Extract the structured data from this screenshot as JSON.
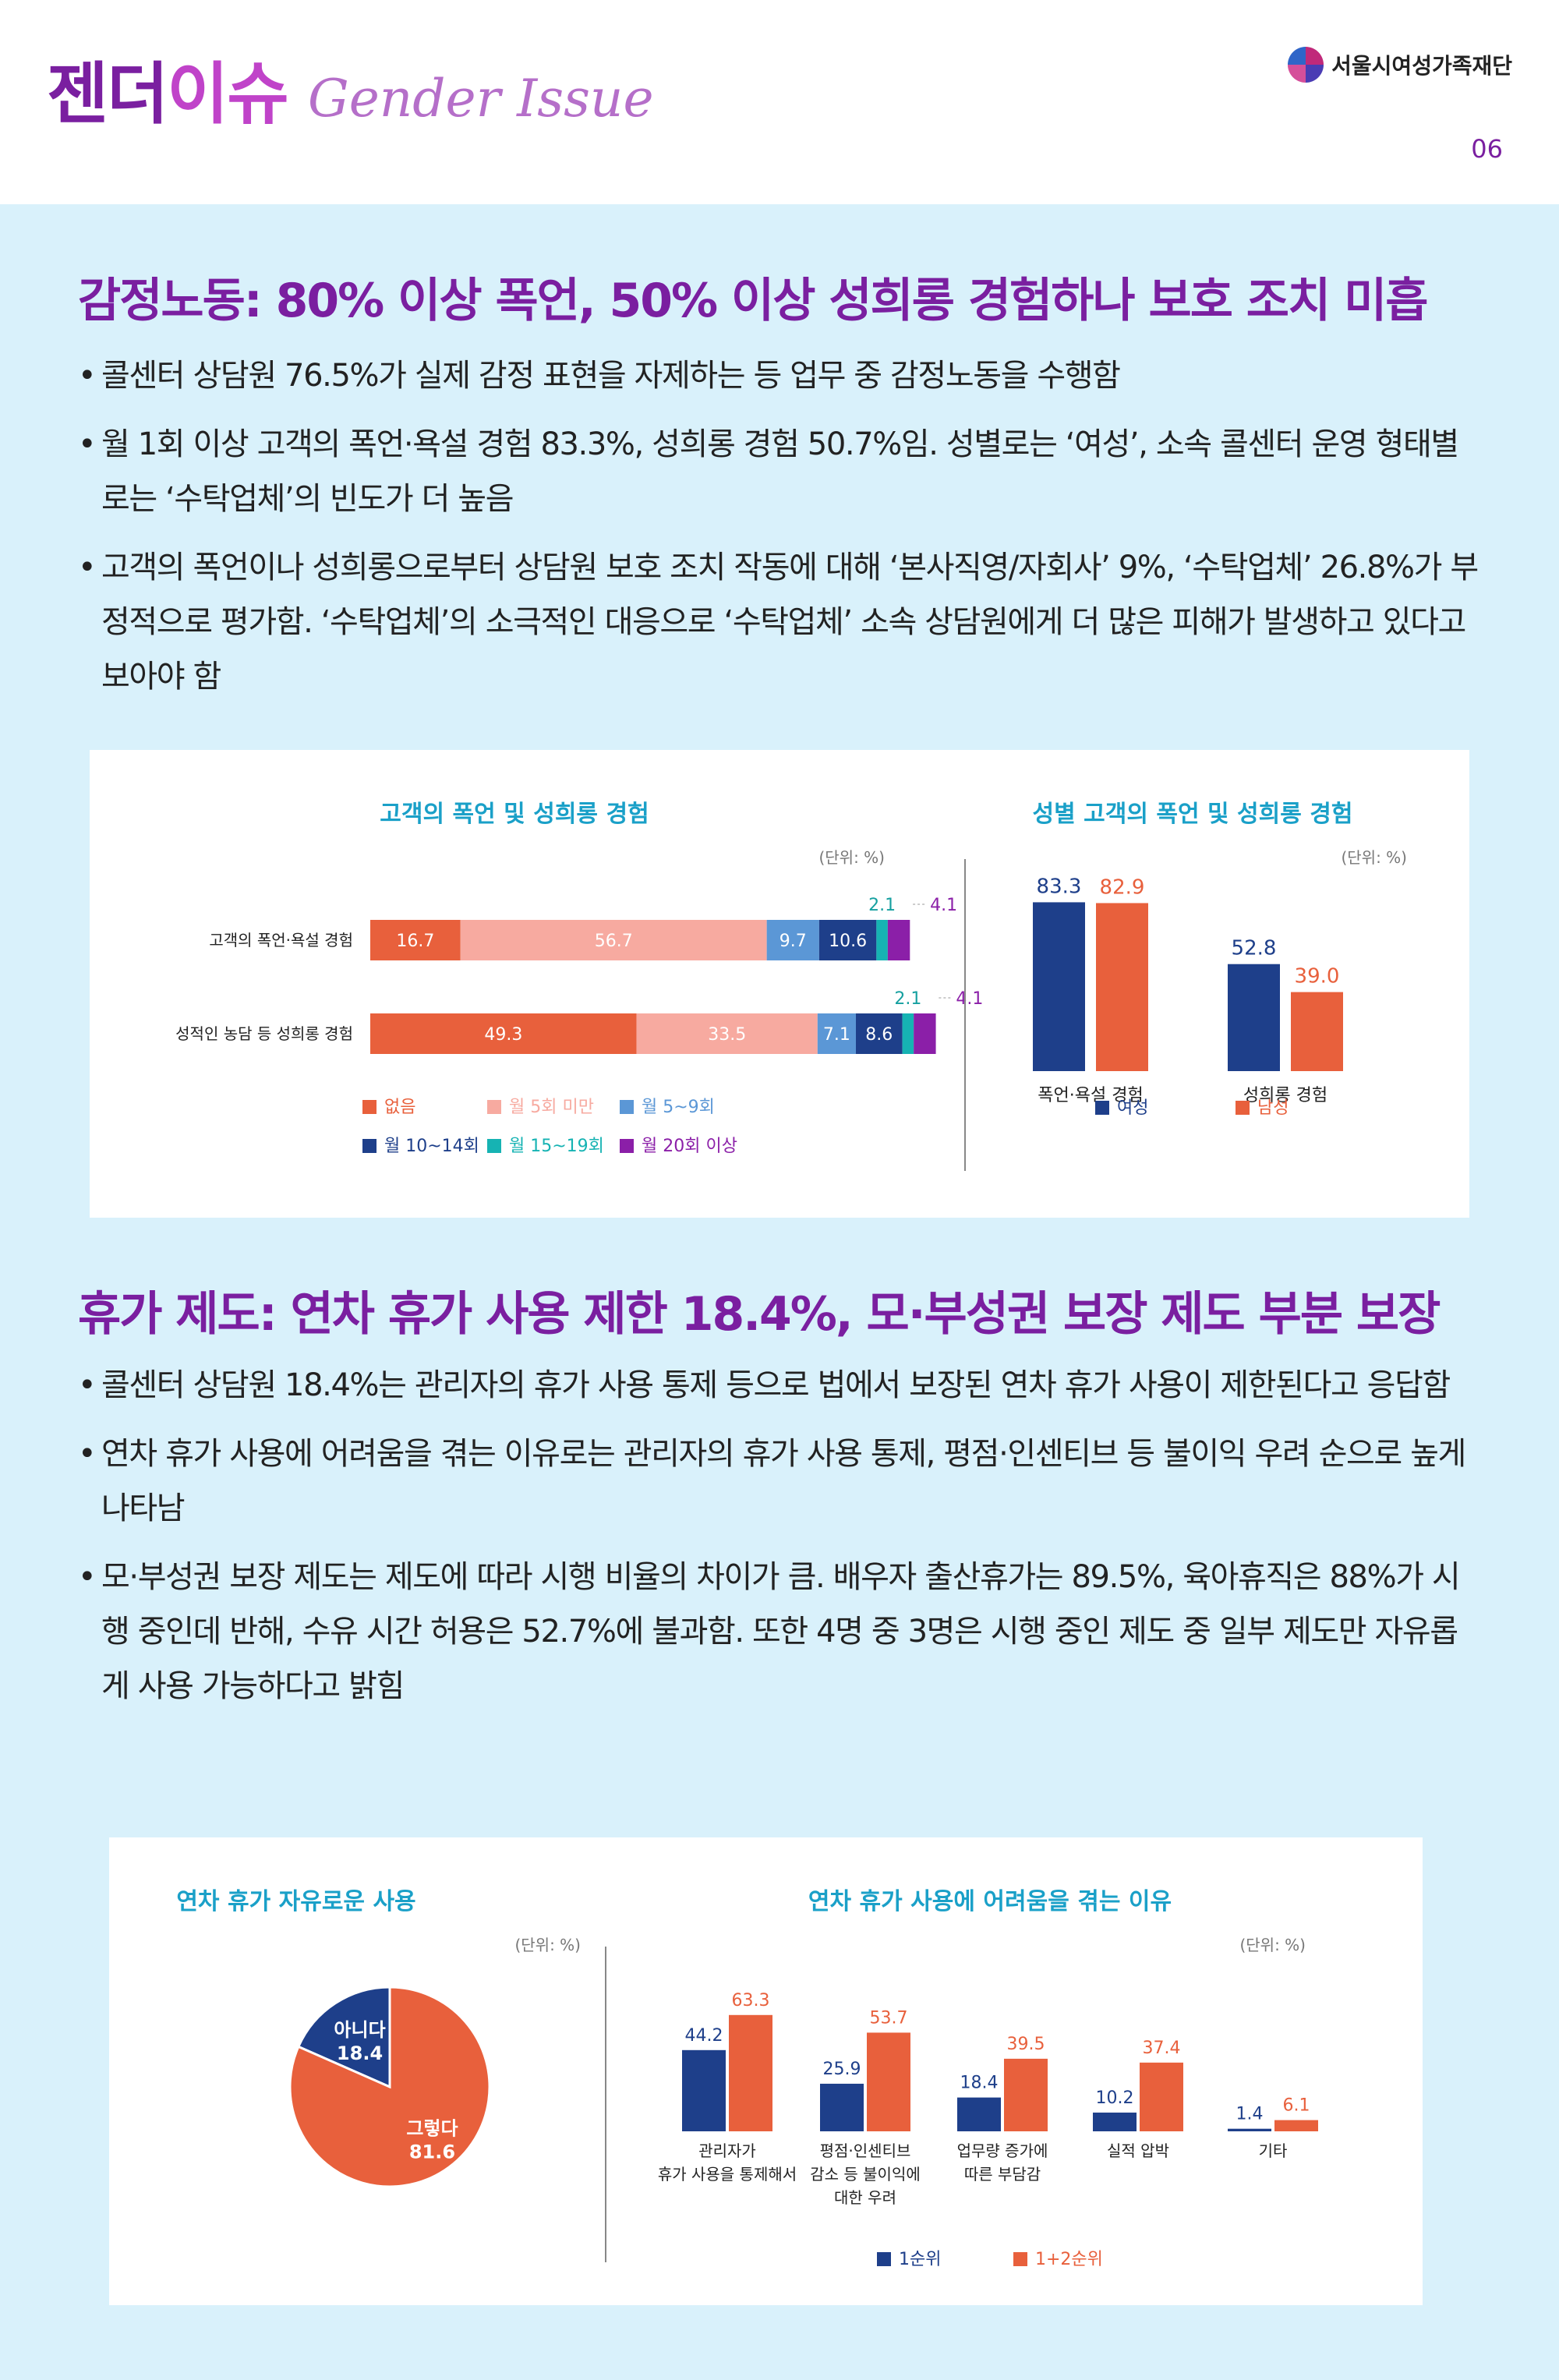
{
  "header": {
    "title_part1": "젠더",
    "title_part2": "이슈",
    "title_en": "Gender Issue",
    "org_name": "서울시여성가족재단",
    "page_number": "06"
  },
  "section1": {
    "title": "감정노동: 80% 이상 폭언, 50% 이상 성희롱 경험하나 보호 조치 미흡",
    "bullets": [
      "콜센터 상담원 76.5%가 실제 감정 표현을 자제하는 등 업무 중 감정노동을 수행함",
      "월 1회 이상 고객의 폭언·욕설 경험 83.3%, 성희롱 경험 50.7%임. 성별로는 ‘여성’, 소속 콜센터 운영 형태별로는 ‘수탁업체’의 빈도가 더 높음",
      "고객의 폭언이나 성희롱으로부터 상담원 보호 조치 작동에 대해 ‘본사직영/자회사’ 9%, ‘수탁업체’ 26.8%가 부정적으로 평가함. ‘수탁업체’의 소극적인 대응으로 ‘수탁업체’ 소속 상담원에게 더 많은 피해가 발생하고 있다고 보아야 함"
    ]
  },
  "section2": {
    "title": "휴가 제도: 연차 휴가 사용 제한 18.4%, 모·부성권 보장 제도 부분 보장",
    "bullets": [
      "콜센터 상담원 18.4%는 관리자의 휴가 사용 통제 등으로 법에서 보장된 연차 휴가 사용이 제한된다고 응답함",
      "연차 휴가 사용에 어려움을 겪는 이유로는 관리자의 휴가 사용 통제, 평점·인센티브 등 불이익 우려 순으로 높게 나타남",
      "모·부성권 보장 제도는 제도에 따라 시행 비율의 차이가 큼. 배우자 출산휴가는 89.5%, 육아휴직은 88%가 시행 중인데 반해, 수유 시간 허용은 52.7%에 불과함. 또한 4명 중 3명은 시행 중인 제도 중 일부 제도만 자유롭게 사용 가능하다고 밝힘"
    ]
  },
  "chart_data": [
    {
      "type": "bar",
      "orientation": "horizontal-stacked",
      "title": "고객의 폭언 및 성희롱 경험",
      "unit": "(단위: %)",
      "categories": [
        "고객의 폭언·욕설 경험",
        "성적인 농담 등 성희롱 경험"
      ],
      "series": [
        {
          "name": "없음",
          "values": [
            16.7,
            49.3
          ],
          "color": "#e8603c"
        },
        {
          "name": "월 5회 미만",
          "values": [
            56.7,
            33.5
          ],
          "color": "#f7aaa0"
        },
        {
          "name": "월 5~9회",
          "values": [
            9.7,
            7.1
          ],
          "color": "#5b97d6"
        },
        {
          "name": "월 10~14회",
          "values": [
            10.6,
            8.6
          ],
          "color": "#1e3f8a"
        },
        {
          "name": "월 15~19회",
          "values": [
            2.1,
            2.1
          ],
          "color": "#16b3b3"
        },
        {
          "name": "월 20회 이상",
          "values": [
            4.1,
            4.1
          ],
          "color": "#8b1fa8"
        }
      ],
      "legend": "bottom"
    },
    {
      "type": "bar",
      "title": "성별 고객의 폭언 및 성희롱 경험",
      "unit": "(단위: %)",
      "categories": [
        "폭언·욕설 경험",
        "성희롱 경험"
      ],
      "series": [
        {
          "name": "여성",
          "values": [
            83.3,
            52.8
          ],
          "color": "#1e3f8a"
        },
        {
          "name": "남성",
          "values": [
            82.9,
            39.0
          ],
          "color": "#e8603c"
        }
      ],
      "value_labels": [
        [
          "83.3",
          "52.8"
        ],
        [
          "82.9",
          "39.0"
        ]
      ],
      "ylim": [
        0,
        100
      ],
      "legend": "bottom"
    },
    {
      "type": "pie",
      "title": "연차 휴가 자유로운 사용",
      "unit": "(단위: %)",
      "slices": [
        {
          "label": "아니다",
          "value": 18.4,
          "color": "#1e3f8a"
        },
        {
          "label": "그렇다",
          "value": 81.6,
          "color": "#e8603c"
        }
      ]
    },
    {
      "type": "bar",
      "title": "연차 휴가 사용에 어려움을 겪는 이유",
      "unit": "(단위: %)",
      "categories": [
        [
          "관리자가",
          "휴가 사용을 통제해서"
        ],
        [
          "평점·인센티브",
          "감소 등 불이익에",
          "대한 우려"
        ],
        [
          "업무량 증가에",
          "따른 부담감"
        ],
        [
          "실적 압박"
        ],
        [
          "기타"
        ]
      ],
      "series": [
        {
          "name": "1순위",
          "values": [
            44.2,
            25.9,
            18.4,
            10.2,
            1.4
          ],
          "color": "#1e3f8a"
        },
        {
          "name": "1+2순위",
          "values": [
            63.3,
            53.7,
            39.5,
            37.4,
            6.1
          ],
          "color": "#e8603c"
        }
      ],
      "ylim": [
        0,
        70
      ],
      "legend": "bottom"
    }
  ],
  "colors": {
    "title_purple": "#7a1fa0",
    "chart_title_teal": "#1aa0c8",
    "background": "#d9f1fb"
  }
}
